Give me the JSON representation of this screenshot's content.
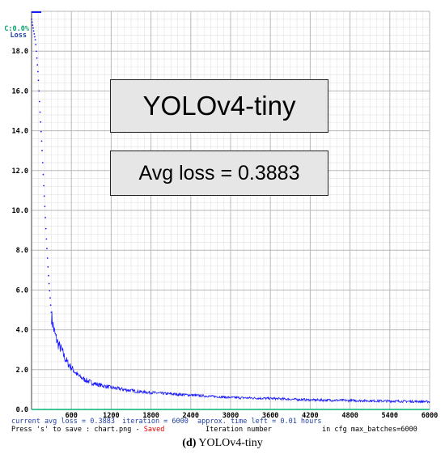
{
  "chart_data": {
    "type": "line",
    "xlabel": "Iteration number",
    "ylabel": "Loss",
    "xlim": [
      0,
      6000
    ],
    "ylim": [
      0,
      20
    ],
    "x_ticks": [
      "600",
      "1200",
      "1800",
      "2400",
      "3000",
      "3600",
      "4200",
      "4800",
      "5400",
      "6000"
    ],
    "y_ticks": [
      "0.0",
      "2.0",
      "4.0",
      "6.0",
      "8.0",
      "10.0",
      "12.0",
      "14.0",
      "16.0",
      "18.0"
    ],
    "grid": true,
    "series": [
      {
        "color": "#1a1aff",
        "x": [
          0,
          60,
          100,
          130,
          160,
          180,
          200,
          220,
          240,
          260,
          280,
          300,
          330,
          360,
          400,
          450,
          500,
          550,
          600,
          700,
          800,
          900,
          1000,
          1200,
          1400,
          1600,
          1800,
          2000,
          2400,
          3000,
          3600,
          4200,
          4800,
          5400,
          6000
        ],
        "y": [
          19.6,
          18.5,
          16.8,
          14.8,
          13.0,
          11.5,
          10.2,
          8.8,
          7.6,
          6.5,
          5.6,
          4.7,
          4.1,
          3.7,
          3.3,
          3.0,
          2.6,
          2.3,
          2.1,
          1.7,
          1.5,
          1.35,
          1.25,
          1.1,
          1.0,
          0.9,
          0.85,
          0.8,
          0.72,
          0.6,
          0.55,
          0.48,
          0.45,
          0.42,
          0.39
        ]
      }
    ],
    "accuracy_label": "C:0.0%"
  },
  "annotations": {
    "model_name": "YOLOv4-tiny",
    "avg_loss": "Avg loss = 0.3883"
  },
  "status": {
    "line1a": "current avg loss = 0.3883",
    "line1b": "iteration = 6000",
    "line1c": "approx. time left = 0.01 hours",
    "line2a": "Press 's' to save : chart.png - ",
    "line2saved": "Saved",
    "line2b": "Iteration number",
    "line2c": "in cfg max_batches=6000"
  },
  "caption": {
    "letter": "(d)",
    "text": "YOLOv4-tiny"
  }
}
